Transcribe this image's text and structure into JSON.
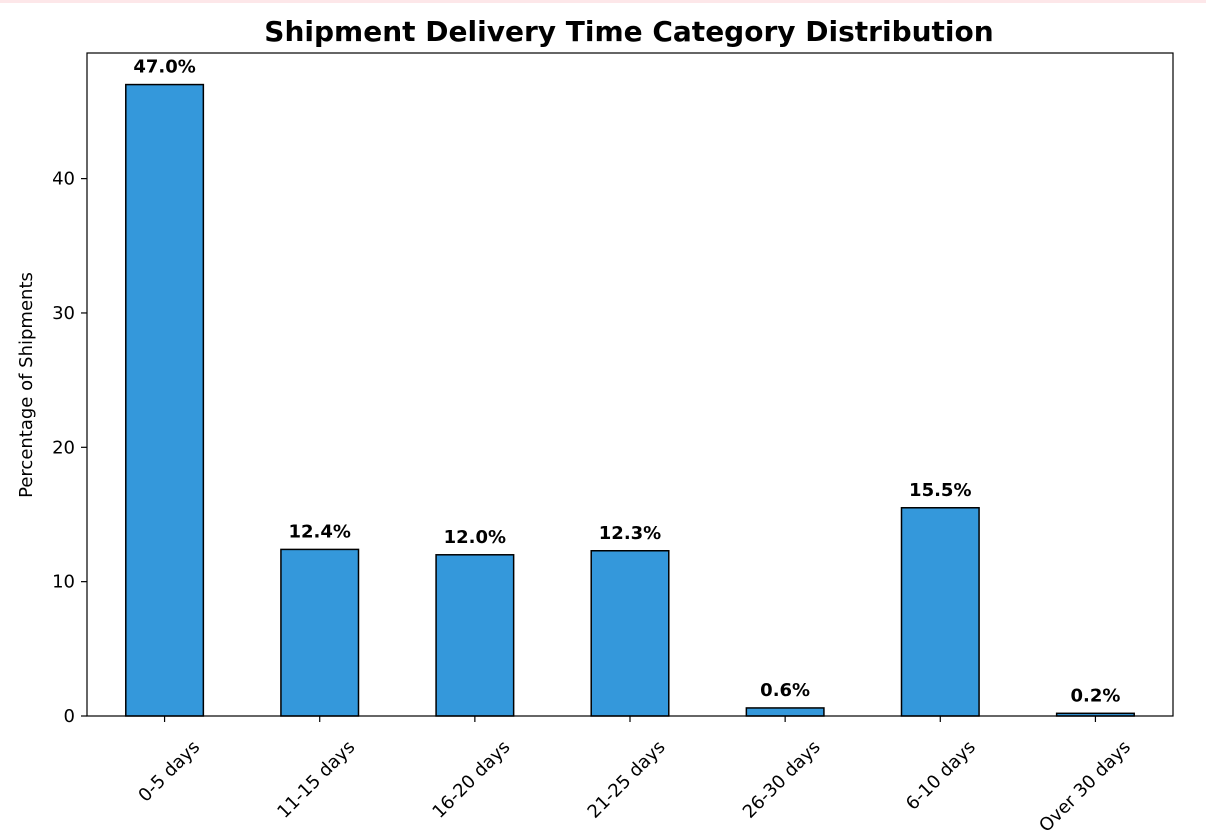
{
  "chart_data": {
    "type": "bar",
    "title": "Shipment Delivery Time Category Distribution",
    "xlabel": "",
    "ylabel": "Percentage of Shipments",
    "categories": [
      "0-5 days",
      "11-15 days",
      "16-20 days",
      "21-25 days",
      "26-30 days",
      "6-10 days",
      "Over 30 days"
    ],
    "values": [
      47.0,
      12.4,
      12.0,
      12.3,
      0.6,
      15.5,
      0.2
    ],
    "data_labels": [
      "47.0%",
      "12.4%",
      "12.0%",
      "12.3%",
      "0.6%",
      "15.5%",
      "0.2%"
    ],
    "ylim": [
      0,
      49.35
    ],
    "yticks": [
      0,
      10,
      20,
      30,
      40
    ],
    "grid": false,
    "bar_color": "#3498db",
    "edge_color": "#000000"
  }
}
